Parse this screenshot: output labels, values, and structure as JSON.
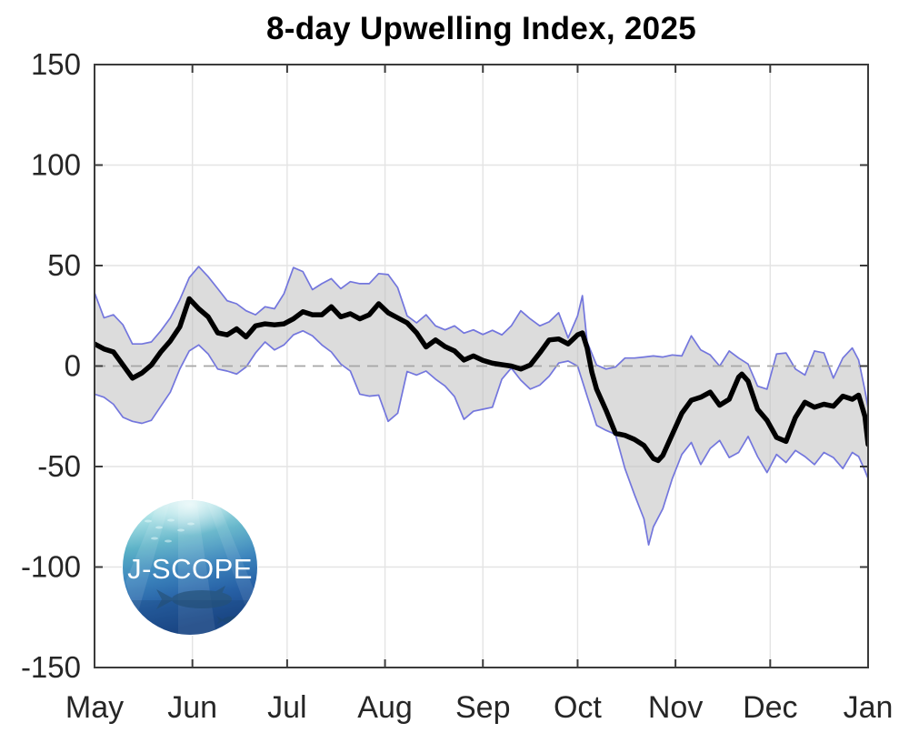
{
  "logo": {
    "text": "J-SCOPE"
  },
  "chart_data": {
    "type": "line",
    "title": "8-day Upwelling Index, 2025",
    "xlabel": "",
    "ylabel": "",
    "xlim": [
      0,
      245
    ],
    "ylim": [
      -150,
      150
    ],
    "x_unit": "days since May 1",
    "xtick_days": [
      0,
      31,
      61,
      92,
      123,
      153,
      184,
      214,
      245
    ],
    "xtick_labels": [
      "May",
      "Jun",
      "Jul",
      "Aug",
      "Sep",
      "Oct",
      "Nov",
      "Dec",
      "Jan"
    ],
    "ytick_values": [
      -150,
      -100,
      -50,
      0,
      50,
      100,
      150
    ],
    "ytick_labels": [
      "-150",
      "-100",
      "-50",
      "0",
      "50",
      "100",
      "150"
    ],
    "grid": true,
    "zero_line": "dashed",
    "legend_position": "none",
    "colors": {
      "mean_line": "#000000",
      "envelope_line": "#7376dd",
      "band_fill": "#b9b9b9",
      "zero_line": "#a6a6a6",
      "grid_line": "#e4e4e4",
      "frame": "#3b3b3b",
      "tick_label": "#262626"
    },
    "series": [
      {
        "name": "ensemble mean",
        "points": [
          [
            0,
            11
          ],
          [
            3,
            8.5
          ],
          [
            6,
            7
          ],
          [
            9,
            0.5
          ],
          [
            12,
            -6
          ],
          [
            15,
            -3.5
          ],
          [
            18,
            0.5
          ],
          [
            21,
            7
          ],
          [
            24,
            12.5
          ],
          [
            27,
            19.5
          ],
          [
            30,
            33.5
          ],
          [
            33,
            28.5
          ],
          [
            36,
            24.5
          ],
          [
            39,
            16.5
          ],
          [
            42,
            15.5
          ],
          [
            45,
            18.5
          ],
          [
            48,
            14.5
          ],
          [
            51,
            20
          ],
          [
            54,
            21
          ],
          [
            57,
            20.5
          ],
          [
            60,
            21
          ],
          [
            63,
            23.5
          ],
          [
            66,
            27
          ],
          [
            69,
            25.5
          ],
          [
            72,
            25.5
          ],
          [
            75,
            29.5
          ],
          [
            78,
            24.5
          ],
          [
            81,
            26
          ],
          [
            84,
            23.5
          ],
          [
            87,
            25.5
          ],
          [
            90,
            31
          ],
          [
            93,
            26.5
          ],
          [
            96,
            24
          ],
          [
            99,
            21.5
          ],
          [
            102,
            16.5
          ],
          [
            105,
            9.5
          ],
          [
            108,
            13
          ],
          [
            111,
            9.7
          ],
          [
            114,
            7.5
          ],
          [
            117,
            3
          ],
          [
            120,
            5
          ],
          [
            123,
            2.8
          ],
          [
            126,
            1.4
          ],
          [
            129,
            0.7
          ],
          [
            132,
            0
          ],
          [
            135,
            -1.5
          ],
          [
            138,
            0.5
          ],
          [
            141,
            6.5
          ],
          [
            144,
            13
          ],
          [
            147,
            13.5
          ],
          [
            150,
            11
          ],
          [
            153,
            15.5
          ],
          [
            154.5,
            16.5
          ],
          [
            156,
            9
          ],
          [
            157.5,
            -3
          ],
          [
            159,
            -11.5
          ],
          [
            162,
            -22
          ],
          [
            165,
            -33.5
          ],
          [
            168,
            -34.5
          ],
          [
            171,
            -36.5
          ],
          [
            174,
            -39.5
          ],
          [
            177,
            -46
          ],
          [
            178.5,
            -47
          ],
          [
            180,
            -44.5
          ],
          [
            183,
            -34
          ],
          [
            186,
            -23.5
          ],
          [
            189,
            -17
          ],
          [
            192,
            -15.5
          ],
          [
            195,
            -13
          ],
          [
            198,
            -19.5
          ],
          [
            201,
            -16.5
          ],
          [
            204,
            -5.5
          ],
          [
            205,
            -4
          ],
          [
            207,
            -7.5
          ],
          [
            210,
            -21.5
          ],
          [
            213,
            -27
          ],
          [
            216,
            -35.5
          ],
          [
            219,
            -37.5
          ],
          [
            222,
            -25.5
          ],
          [
            225,
            -18
          ],
          [
            228,
            -20.5
          ],
          [
            231,
            -19
          ],
          [
            234,
            -20
          ],
          [
            237,
            -15
          ],
          [
            240,
            -16.5
          ],
          [
            242,
            -14.5
          ],
          [
            244,
            -25
          ],
          [
            245,
            -39
          ]
        ]
      },
      {
        "name": "ensemble upper bound",
        "points": [
          [
            0,
            36.5
          ],
          [
            3,
            24
          ],
          [
            6,
            25.5
          ],
          [
            9,
            20.5
          ],
          [
            12,
            11
          ],
          [
            15,
            11
          ],
          [
            18,
            12
          ],
          [
            21,
            17.5
          ],
          [
            24,
            24
          ],
          [
            27,
            33
          ],
          [
            30,
            44
          ],
          [
            33,
            49.5
          ],
          [
            36,
            44.5
          ],
          [
            39,
            38.5
          ],
          [
            42,
            32.5
          ],
          [
            45,
            31
          ],
          [
            48,
            27.5
          ],
          [
            51,
            25.5
          ],
          [
            54,
            29.5
          ],
          [
            57,
            28.5
          ],
          [
            60,
            36
          ],
          [
            63,
            49
          ],
          [
            66,
            47
          ],
          [
            69,
            38
          ],
          [
            72,
            41
          ],
          [
            75,
            43.5
          ],
          [
            78,
            38.5
          ],
          [
            81,
            42
          ],
          [
            84,
            41
          ],
          [
            87,
            41
          ],
          [
            90,
            46
          ],
          [
            93,
            45.5
          ],
          [
            96,
            39
          ],
          [
            99,
            25
          ],
          [
            102,
            21.5
          ],
          [
            105,
            25.5
          ],
          [
            108,
            20
          ],
          [
            111,
            18
          ],
          [
            114,
            20
          ],
          [
            117,
            16.4
          ],
          [
            120,
            18
          ],
          [
            123,
            15.7
          ],
          [
            126,
            17.8
          ],
          [
            129,
            15.5
          ],
          [
            132,
            20
          ],
          [
            135,
            27.5
          ],
          [
            138,
            23.5
          ],
          [
            141,
            20
          ],
          [
            144,
            22
          ],
          [
            147,
            26.5
          ],
          [
            150,
            14
          ],
          [
            153,
            25
          ],
          [
            154.5,
            35
          ],
          [
            156,
            12
          ],
          [
            159,
            0.5
          ],
          [
            162,
            -1.5
          ],
          [
            165,
            -0.5
          ],
          [
            168,
            4
          ],
          [
            171,
            4
          ],
          [
            174,
            4.5
          ],
          [
            177,
            5
          ],
          [
            180,
            4.5
          ],
          [
            183,
            5.5
          ],
          [
            186,
            5
          ],
          [
            189,
            15
          ],
          [
            192,
            8
          ],
          [
            195,
            5.5
          ],
          [
            198,
            0
          ],
          [
            201,
            7.5
          ],
          [
            204,
            4
          ],
          [
            207,
            1
          ],
          [
            210,
            -10
          ],
          [
            213,
            -11.5
          ],
          [
            216,
            6
          ],
          [
            219,
            6.5
          ],
          [
            222,
            -1.5
          ],
          [
            225,
            -4.5
          ],
          [
            228,
            7.5
          ],
          [
            231,
            6.5
          ],
          [
            234,
            -6
          ],
          [
            237,
            4
          ],
          [
            240,
            9
          ],
          [
            242,
            3
          ],
          [
            244,
            -12
          ],
          [
            245,
            -21
          ]
        ]
      },
      {
        "name": "ensemble lower bound",
        "points": [
          [
            0,
            -14
          ],
          [
            3,
            -15.5
          ],
          [
            6,
            -19
          ],
          [
            9,
            -25.5
          ],
          [
            12,
            -27.5
          ],
          [
            15,
            -28.5
          ],
          [
            18,
            -27
          ],
          [
            21,
            -20
          ],
          [
            24,
            -13
          ],
          [
            27,
            -1.5
          ],
          [
            30,
            7.5
          ],
          [
            33,
            10.5
          ],
          [
            36,
            6
          ],
          [
            39,
            -1.5
          ],
          [
            42,
            -2.5
          ],
          [
            45,
            -4
          ],
          [
            48,
            -0.5
          ],
          [
            51,
            6.5
          ],
          [
            54,
            12
          ],
          [
            57,
            8
          ],
          [
            60,
            10.5
          ],
          [
            63,
            15.5
          ],
          [
            66,
            17.5
          ],
          [
            69,
            15
          ],
          [
            72,
            10.5
          ],
          [
            75,
            7
          ],
          [
            78,
            1
          ],
          [
            81,
            -2.5
          ],
          [
            84,
            -14
          ],
          [
            87,
            -15
          ],
          [
            90,
            -14.5
          ],
          [
            93,
            -27.5
          ],
          [
            96,
            -23.5
          ],
          [
            99,
            -2.7
          ],
          [
            102,
            -4.5
          ],
          [
            105,
            -2.5
          ],
          [
            108,
            -6.5
          ],
          [
            111,
            -9.9
          ],
          [
            114,
            -15.2
          ],
          [
            117,
            -26.5
          ],
          [
            120,
            -22.5
          ],
          [
            123,
            -21.5
          ],
          [
            126,
            -20.5
          ],
          [
            129,
            -6.5
          ],
          [
            132,
            -1
          ],
          [
            135,
            -7
          ],
          [
            138,
            -11.5
          ],
          [
            141,
            -9.5
          ],
          [
            144,
            -5
          ],
          [
            147,
            1.5
          ],
          [
            150,
            2.5
          ],
          [
            153,
            0
          ],
          [
            156,
            -15
          ],
          [
            159,
            -29.5
          ],
          [
            162,
            -32
          ],
          [
            165,
            -34
          ],
          [
            168,
            -51
          ],
          [
            171,
            -64
          ],
          [
            174,
            -76
          ],
          [
            175.5,
            -89
          ],
          [
            177,
            -80
          ],
          [
            180,
            -71
          ],
          [
            183,
            -56
          ],
          [
            186,
            -44
          ],
          [
            189,
            -38
          ],
          [
            192,
            -49
          ],
          [
            195,
            -41
          ],
          [
            198,
            -37
          ],
          [
            201,
            -45.5
          ],
          [
            204,
            -43
          ],
          [
            207,
            -35
          ],
          [
            210,
            -45
          ],
          [
            213,
            -53
          ],
          [
            216,
            -44
          ],
          [
            219,
            -48
          ],
          [
            222,
            -42
          ],
          [
            225,
            -45
          ],
          [
            228,
            -49
          ],
          [
            231,
            -43
          ],
          [
            234,
            -45.5
          ],
          [
            237,
            -51
          ],
          [
            240,
            -43
          ],
          [
            242,
            -45
          ],
          [
            244,
            -52
          ],
          [
            245,
            -56
          ]
        ]
      }
    ]
  }
}
